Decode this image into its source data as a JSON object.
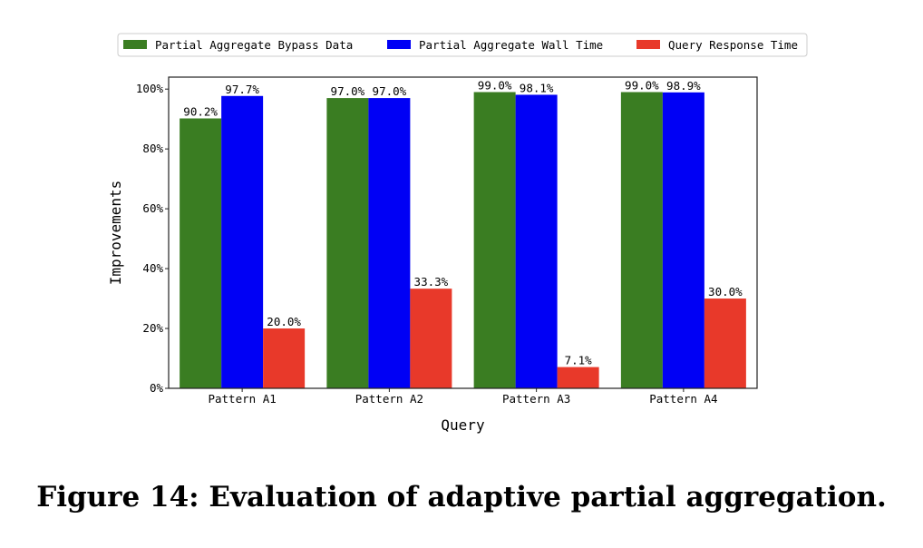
{
  "chart_data": {
    "type": "bar",
    "categories": [
      "Pattern A1",
      "Pattern A2",
      "Pattern A3",
      "Pattern A4"
    ],
    "series": [
      {
        "name": "Partial Aggregate Bypass Data",
        "color": "#3a7d22",
        "values": [
          90.2,
          97.0,
          99.0,
          99.0
        ],
        "labels": [
          "90.2%",
          "97.0%",
          "99.0%",
          "99.0%"
        ]
      },
      {
        "name": "Partial Aggregate Wall Time",
        "color": "#0000f5",
        "values": [
          97.7,
          97.0,
          98.1,
          98.9
        ],
        "labels": [
          "97.7%",
          "97.0%",
          "98.1%",
          "98.9%"
        ]
      },
      {
        "name": "Query Response Time",
        "color": "#e8392a",
        "values": [
          20.0,
          33.3,
          7.1,
          30.0
        ],
        "labels": [
          "20.0%",
          "33.3%",
          "7.1%",
          "30.0%"
        ]
      }
    ],
    "xlabel": "Query",
    "ylabel": "Improvements",
    "ylim": [
      0,
      104
    ],
    "yticks": [
      0,
      20,
      40,
      60,
      80,
      100
    ],
    "ytick_labels": [
      "0%",
      "20%",
      "40%",
      "60%",
      "80%",
      "100%"
    ],
    "grid": false,
    "legend_position": "top-center"
  },
  "caption": "Figure 14: Evaluation of adaptive partial aggregation."
}
